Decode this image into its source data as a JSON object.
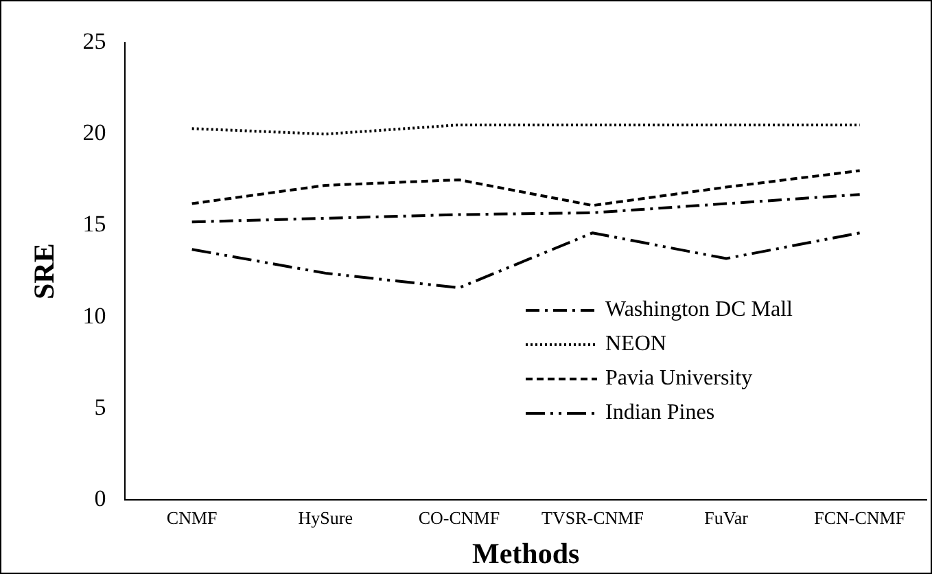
{
  "chart_data": {
    "type": "line",
    "xlabel": "Methods",
    "ylabel": "SRE",
    "categories": [
      "CNMF",
      "HySure",
      "CO-CNMF",
      "TVSR-CNMF",
      "FuVar",
      "FCN-CNMF"
    ],
    "series": [
      {
        "name": "Washington DC Mall",
        "color": "#000000",
        "line_style": "dashed",
        "values": [
          15.2,
          15.4,
          15.6,
          15.7,
          16.2,
          16.7
        ]
      },
      {
        "name": "NEON",
        "color": "#000000",
        "line_style": "dotted",
        "values": [
          20.3,
          20.0,
          20.5,
          20.5,
          20.5,
          20.5
        ]
      },
      {
        "name": "Pavia University",
        "color": "#000000",
        "line_style": "dashed",
        "values": [
          16.2,
          17.2,
          17.5,
          16.1,
          17.1,
          18.0
        ]
      },
      {
        "name": "Indian Pines",
        "color": "#000000",
        "line_style": "dashed",
        "values": [
          13.7,
          12.4,
          11.6,
          14.6,
          13.2,
          14.6
        ]
      }
    ],
    "ylim": [
      0,
      25
    ],
    "yticks": [
      0,
      5,
      10,
      15,
      20,
      25
    ],
    "grid": false,
    "legend": "bottom right",
    "marker": "none"
  }
}
